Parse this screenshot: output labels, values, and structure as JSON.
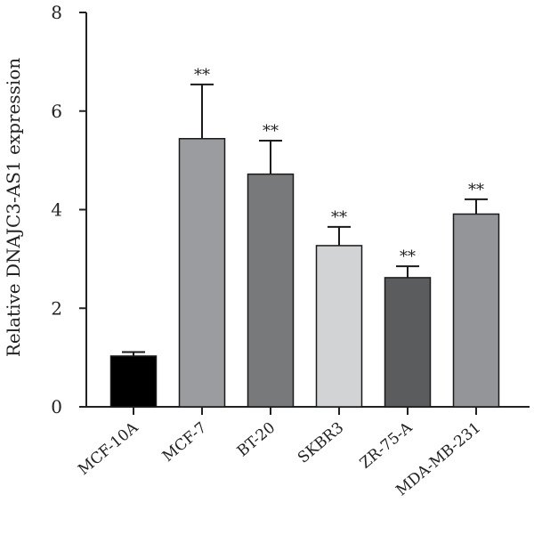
{
  "chart_data": {
    "type": "bar",
    "title": "",
    "xlabel": "",
    "ylabel": "Relative DNAJC3-AS1 expression",
    "ylim": [
      0,
      8
    ],
    "yticks": [
      "0",
      "2",
      "4",
      "6",
      "8"
    ],
    "categories": [
      "MCF-10A",
      "MCF-7",
      "BT-20",
      "SKBR3",
      "ZR-75-A",
      "MDA-MB-231"
    ],
    "values": [
      1.03,
      5.44,
      4.72,
      3.27,
      2.62,
      3.91
    ],
    "errors": [
      0.08,
      1.1,
      0.68,
      0.38,
      0.23,
      0.3
    ],
    "significance": [
      "",
      "**",
      "**",
      "**",
      "**",
      "**"
    ],
    "colors": [
      "#000000",
      "#9a9c9f",
      "#77797b",
      "#d2d3d4",
      "#5b5c5e",
      "#939598"
    ],
    "grid": false,
    "legend": "none"
  }
}
